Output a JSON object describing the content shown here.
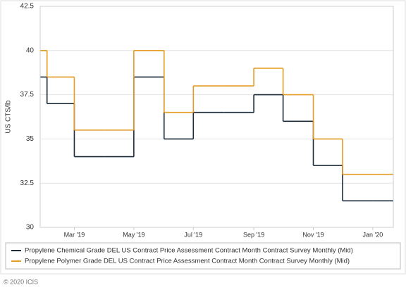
{
  "chart_data": {
    "type": "step",
    "y_label": "US CTS/lb",
    "x": [
      "2019-01",
      "2019-02",
      "2019-03",
      "2019-04",
      "2019-05",
      "2019-06",
      "2019-07",
      "2019-08",
      "2019-09",
      "2019-10",
      "2019-11",
      "2019-12",
      "2020-01"
    ],
    "series": [
      {
        "name": "Propylene Chemical Grade DEL US Contract Price Assessment Contract Month Contract Survey Monthly (Mid)",
        "color": "#1c2b39",
        "values": [
          38.5,
          37,
          34,
          34,
          38.5,
          35,
          36.5,
          36.5,
          37.5,
          36,
          33.5,
          31.5,
          31.5
        ]
      },
      {
        "name": "Propylene Polymer Grade DEL US Contract Price Assessment Contract Month Contract Survey Monthly (Mid)",
        "color": "#e59c24",
        "values": [
          40,
          38.5,
          35.5,
          35.5,
          40,
          36.5,
          38,
          38,
          39,
          37.5,
          35,
          33,
          33
        ]
      }
    ],
    "xlim": [
      "2019-01-25",
      "2020-01-22"
    ],
    "xticks": [
      {
        "value": "2019-03",
        "label": "Mar '19"
      },
      {
        "value": "2019-05",
        "label": "May '19"
      },
      {
        "value": "2019-07",
        "label": "Jul '19"
      },
      {
        "value": "2019-09",
        "label": "Sep '19"
      },
      {
        "value": "2019-11",
        "label": "Nov '19"
      },
      {
        "value": "2020-01",
        "label": "Jan '20"
      }
    ],
    "ylim": [
      30,
      42.5
    ],
    "yticks": [
      30,
      32.5,
      35,
      37.5,
      40,
      42.5
    ],
    "grid": true,
    "legend": "bottom",
    "footer": "© 2020 ICIS"
  }
}
